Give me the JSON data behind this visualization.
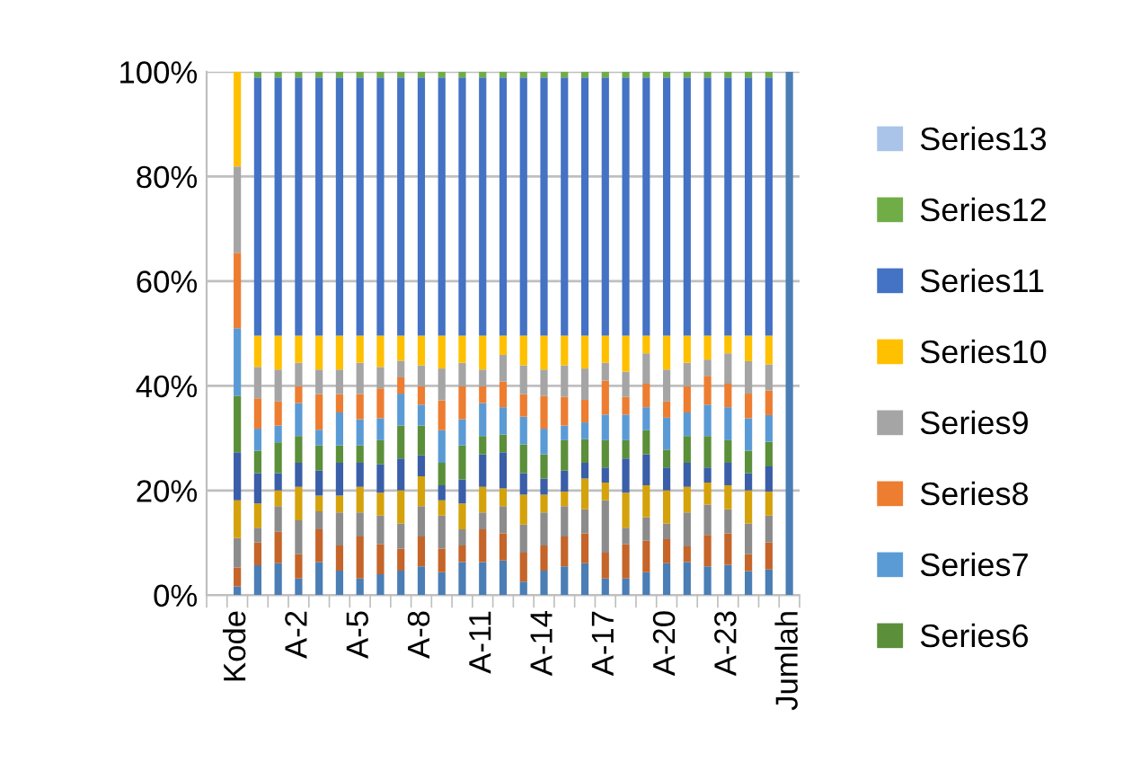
{
  "chart_data": {
    "type": "bar",
    "stacked": true,
    "categories": [
      null,
      "Kode",
      null,
      null,
      "A-2",
      null,
      null,
      "A-5",
      null,
      null,
      "A-8",
      null,
      null,
      "A-11",
      null,
      null,
      "A-14",
      null,
      null,
      "A-17",
      null,
      null,
      "A-20",
      null,
      null,
      "A-23",
      null,
      null,
      "Jumlah"
    ],
    "series": [
      {
        "color": "#4a7eb5",
        "values": [
          null,
          1.7,
          5.7,
          6.1,
          3.2,
          6.3,
          4.7,
          3.2,
          4.0,
          4.7,
          5.5,
          4.4,
          6.3,
          6.3,
          6.6,
          2.6,
          4.7,
          5.5,
          6.1,
          3.2,
          3.2,
          4.4,
          6.1,
          6.3,
          5.5,
          5.8,
          4.6,
          4.9,
          100
        ]
      },
      {
        "color": "#c5652a",
        "values": [
          null,
          3.6,
          4.4,
          6.0,
          4.6,
          6.3,
          4.8,
          8.0,
          5.7,
          4.2,
          5.7,
          4.5,
          3.2,
          6.3,
          5.2,
          5.5,
          4.8,
          5.7,
          5.7,
          4.9,
          6.5,
          6.0,
          4.6,
          3.0,
          6.0,
          6.0,
          3.2,
          5.2,
          0
        ]
      },
      {
        "color": "#8c8c8c",
        "values": [
          null,
          5.6,
          2.8,
          4.9,
          6.5,
          3.4,
          6.3,
          4.6,
          5.5,
          4.8,
          5.8,
          6.3,
          3.1,
          3.2,
          5.2,
          5.4,
          6.3,
          5.8,
          4.6,
          10.0,
          3.2,
          4.5,
          3.0,
          6.5,
          5.8,
          4.6,
          5.9,
          5.1,
          0
        ]
      },
      {
        "color": "#d4a20b",
        "values": [
          null,
          7.2,
          4.6,
          3.0,
          6.4,
          3.0,
          3.2,
          4.9,
          4.4,
          6.3,
          5.7,
          2.9,
          4.9,
          4.9,
          3.4,
          5.7,
          3.4,
          2.8,
          5.9,
          3.4,
          6.7,
          6.1,
          6.3,
          4.9,
          4.2,
          4.6,
          6.3,
          4.6,
          0
        ]
      },
      {
        "color": "#3a5ea8",
        "values": [
          null,
          9.2,
          5.8,
          3.3,
          4.6,
          4.8,
          6.3,
          4.6,
          5.4,
          6.1,
          4.0,
          2.9,
          4.6,
          6.2,
          6.9,
          4.1,
          3.1,
          4.0,
          3.0,
          2.9,
          6.5,
          5.9,
          4.4,
          4.6,
          2.9,
          4.3,
          3.3,
          4.8,
          0
        ]
      },
      {
        "name": "Series6",
        "color": "#5b8f3a",
        "values": [
          null,
          10.8,
          4.3,
          5.9,
          5.1,
          4.8,
          3.3,
          3.3,
          4.6,
          6.3,
          5.7,
          4.3,
          6.5,
          3.5,
          3.4,
          5.5,
          4.6,
          5.8,
          4.5,
          5.2,
          3.5,
          4.6,
          3.4,
          5.1,
          6.0,
          4.3,
          4.3,
          4.7,
          0
        ]
      },
      {
        "name": "Series7",
        "color": "#5b9bd5",
        "values": [
          null,
          12.9,
          4.2,
          3.2,
          6.3,
          3.0,
          6.3,
          5.0,
          4.2,
          6.1,
          4.0,
          6.2,
          5.0,
          6.3,
          5.2,
          5.3,
          4.9,
          2.8,
          3.2,
          4.9,
          4.9,
          4.4,
          6.1,
          4.5,
          6.0,
          6.3,
          6.2,
          5.1,
          0
        ]
      },
      {
        "name": "Series8",
        "color": "#ed7d31",
        "values": [
          null,
          14.4,
          5.8,
          4.6,
          3.2,
          6.8,
          3.5,
          4.8,
          5.7,
          3.1,
          3.5,
          5.7,
          6.3,
          3.2,
          4.9,
          4.3,
          6.3,
          5.5,
          4.3,
          6.5,
          3.4,
          4.5,
          3.1,
          5.0,
          5.5,
          4.5,
          4.7,
          4.7,
          0
        ]
      },
      {
        "name": "Series9",
        "color": "#a5a5a5",
        "values": [
          null,
          16.5,
          6.0,
          6.1,
          4.5,
          4.7,
          4.7,
          6.0,
          4.1,
          3.2,
          4.0,
          6.1,
          4.5,
          3.2,
          5.1,
          5.5,
          5.0,
          6.0,
          6.0,
          3.4,
          4.8,
          5.8,
          6.1,
          4.5,
          3.1,
          5.8,
          6.2,
          5.0,
          0
        ]
      },
      {
        "name": "Series10",
        "color": "#ffc000",
        "values": [
          null,
          18.1,
          6.0,
          6.5,
          5.2,
          6.5,
          6.5,
          5.2,
          6.0,
          4.8,
          5.7,
          6.3,
          5.2,
          6.5,
          3.7,
          5.7,
          6.5,
          5.7,
          6.3,
          5.2,
          6.9,
          3.4,
          6.5,
          5.2,
          4.6,
          3.4,
          4.9,
          5.5,
          0
        ]
      },
      {
        "name": "Series11",
        "color": "#4472c4",
        "values": [
          null,
          0,
          49.3,
          49.3,
          49.3,
          49.3,
          49.3,
          49.3,
          49.3,
          49.3,
          49.3,
          49.3,
          49.3,
          49.3,
          49.3,
          49.3,
          49.3,
          49.3,
          49.3,
          49.3,
          49.3,
          49.3,
          49.3,
          49.3,
          49.3,
          49.3,
          49.3,
          49.3,
          0
        ]
      },
      {
        "name": "Series12",
        "color": "#70ad47",
        "values": [
          null,
          0,
          1.1,
          1.1,
          1.1,
          1.1,
          1.1,
          1.1,
          1.1,
          1.1,
          1.1,
          1.1,
          1.1,
          1.1,
          1.1,
          1.1,
          1.1,
          1.1,
          1.1,
          1.1,
          1.1,
          1.1,
          1.1,
          1.1,
          1.1,
          1.1,
          1.1,
          1.1,
          0
        ]
      },
      {
        "name": "Series13",
        "color": "#a9c4e8",
        "values": [
          null,
          0,
          0,
          0,
          0,
          0,
          0,
          0,
          0,
          0,
          0,
          0,
          0,
          0,
          0,
          0,
          0,
          0,
          0,
          0,
          0,
          0,
          0,
          0,
          0,
          0,
          0,
          0,
          0
        ]
      }
    ],
    "ylim": [
      0,
      100
    ],
    "yticks": [
      {
        "value": 0,
        "label": "0%"
      },
      {
        "value": 20,
        "label": "20%"
      },
      {
        "value": 40,
        "label": "40%"
      },
      {
        "value": 60,
        "label": "60%"
      },
      {
        "value": 80,
        "label": "80%"
      },
      {
        "value": 100,
        "label": "100%"
      }
    ],
    "grid": "y",
    "legend": "right"
  }
}
